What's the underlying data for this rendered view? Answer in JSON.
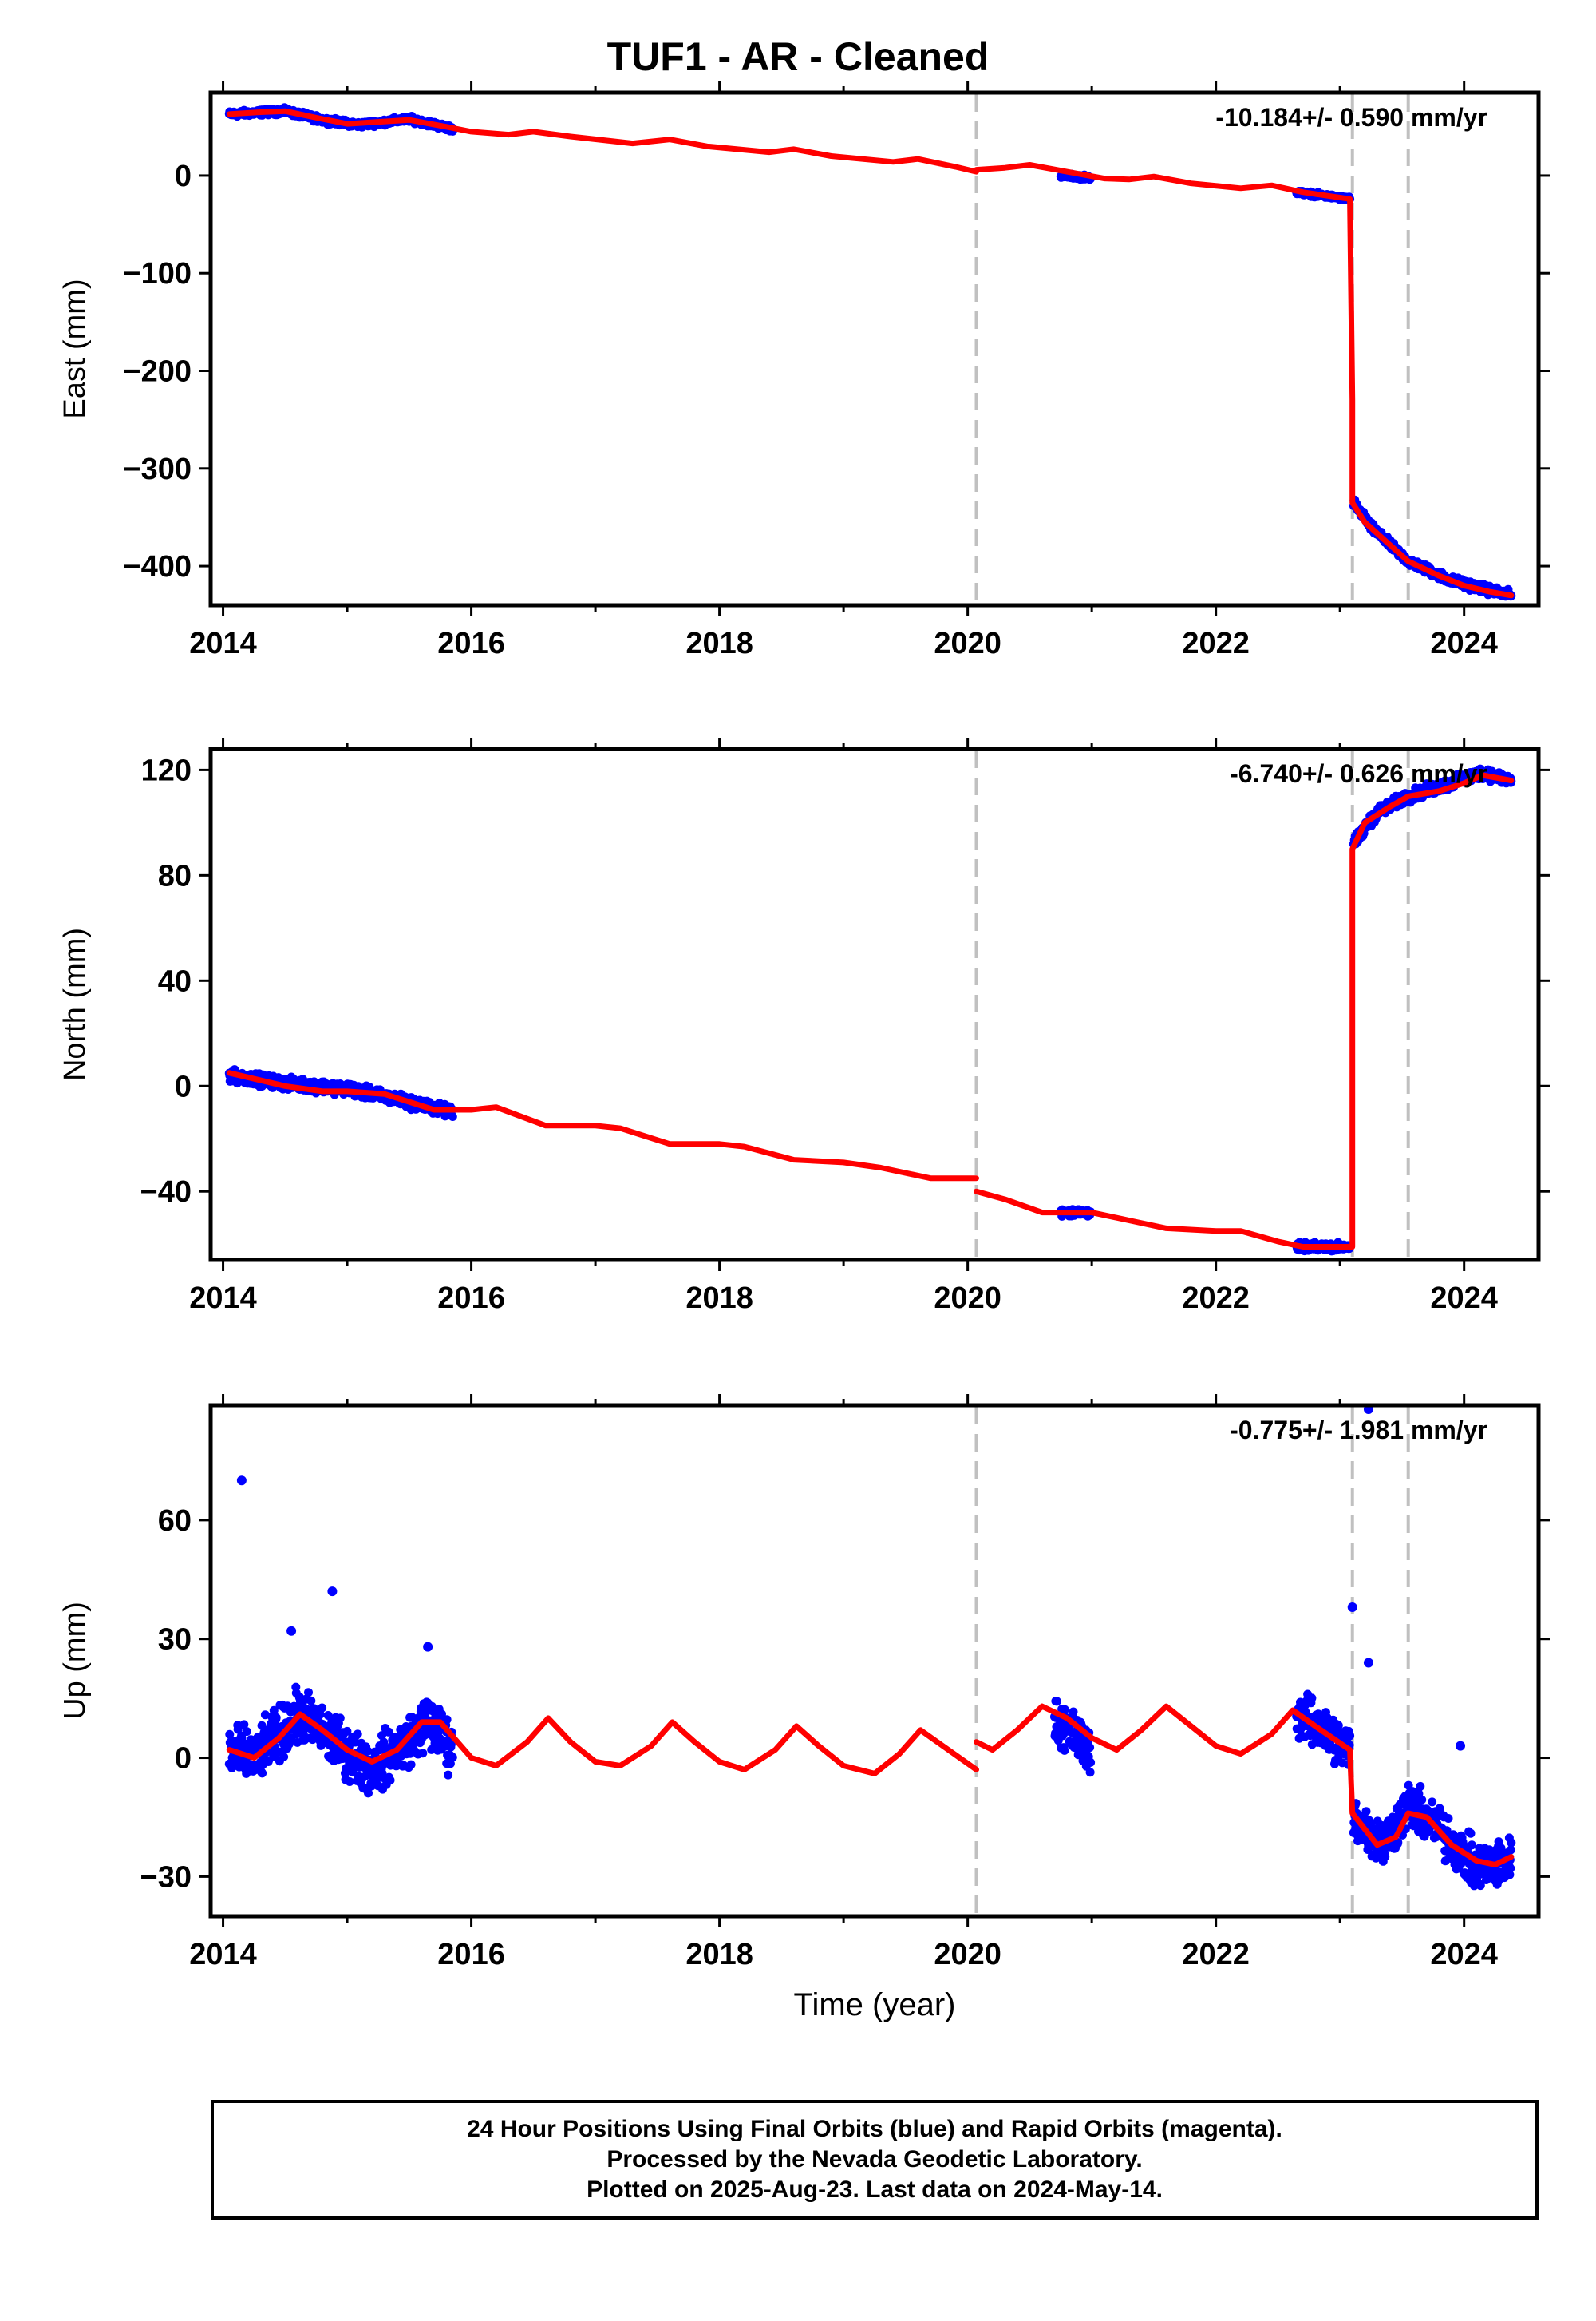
{
  "title": "TUF1  - AR - Cleaned",
  "footer": {
    "line1": "24 Hour Positions Using Final Orbits (blue) and Rapid Orbits (magenta).",
    "line2": "Processed by the Nevada Geodetic Laboratory.",
    "line3": "Plotted on 2025-Aug-23. Last data on 2024-May-14."
  },
  "colors": {
    "data": "#0000ff",
    "model": "#ff0000",
    "event_line": "#c0c0c0",
    "axis": "#000000"
  },
  "chart_data": [
    {
      "type": "scatter",
      "ylabel": "East (mm)",
      "xlabel": "",
      "rate_label": "-10.184+/- 0.590 mm/yr",
      "xlim": [
        2013.9,
        2024.6
      ],
      "ylim": [
        -440,
        85
      ],
      "xticks": [
        2014,
        2016,
        2018,
        2020,
        2022,
        2024
      ],
      "yticks": [
        0,
        -100,
        -200,
        -300,
        -400
      ],
      "event_lines": [
        2020.07,
        2023.1,
        2023.55
      ],
      "model_series": [
        [
          [
            2014.05,
            63
          ],
          [
            2014.3,
            65
          ],
          [
            2014.5,
            66
          ],
          [
            2014.8,
            58
          ],
          [
            2015.0,
            53
          ],
          [
            2015.5,
            57
          ],
          [
            2015.8,
            50
          ],
          [
            2016.0,
            45
          ],
          [
            2016.3,
            42
          ],
          [
            2016.5,
            45
          ],
          [
            2016.8,
            40
          ],
          [
            2017.3,
            33
          ],
          [
            2017.6,
            37
          ],
          [
            2017.9,
            30
          ],
          [
            2018.4,
            24
          ],
          [
            2018.6,
            27
          ],
          [
            2018.9,
            20
          ],
          [
            2019.4,
            14
          ],
          [
            2019.6,
            17
          ],
          [
            2019.9,
            9
          ],
          [
            2020.07,
            4
          ]
        ],
        [
          [
            2020.07,
            6
          ],
          [
            2020.3,
            8
          ],
          [
            2020.5,
            11
          ],
          [
            2020.8,
            4
          ],
          [
            2021.1,
            -3
          ],
          [
            2021.3,
            -4
          ],
          [
            2021.5,
            -1
          ],
          [
            2021.8,
            -8
          ],
          [
            2022.2,
            -13
          ],
          [
            2022.45,
            -10
          ],
          [
            2022.7,
            -17
          ],
          [
            2023.08,
            -24
          ],
          [
            2023.1,
            -230
          ],
          [
            2023.1,
            -335
          ],
          [
            2023.2,
            -355
          ],
          [
            2023.4,
            -378
          ],
          [
            2023.55,
            -395
          ],
          [
            2023.8,
            -410
          ],
          [
            2024.0,
            -420
          ],
          [
            2024.2,
            -426
          ],
          [
            2024.38,
            -430
          ]
        ]
      ],
      "data_segments": [
        {
          "x0": 2014.05,
          "x1": 2015.85,
          "points": [
            [
              2014.05,
              63
            ],
            [
              2014.5,
              66
            ],
            [
              2014.8,
              57
            ],
            [
              2015.1,
              52
            ],
            [
              2015.5,
              58
            ],
            [
              2015.85,
              48
            ]
          ],
          "spread": 4
        },
        {
          "x0": 2020.75,
          "x1": 2020.99,
          "points": [
            [
              2020.75,
              0
            ],
            [
              2020.99,
              -2
            ]
          ],
          "spread": 3
        },
        {
          "x0": 2022.65,
          "x1": 2023.08,
          "points": [
            [
              2022.65,
              -17
            ],
            [
              2023.08,
              -24
            ]
          ],
          "spread": 3
        },
        {
          "x0": 2023.11,
          "x1": 2024.38,
          "points": [
            [
              2023.11,
              -335
            ],
            [
              2023.25,
              -360
            ],
            [
              2023.55,
              -395
            ],
            [
              2023.9,
              -415
            ],
            [
              2024.38,
              -430
            ]
          ],
          "spread": 6
        }
      ],
      "outliers": []
    },
    {
      "type": "scatter",
      "ylabel": "North (mm)",
      "xlabel": "",
      "rate_label": "-6.740+/- 0.626 mm/yr",
      "xlim": [
        2013.9,
        2024.6
      ],
      "ylim": [
        -66,
        128
      ],
      "xticks": [
        2014,
        2016,
        2018,
        2020,
        2022,
        2024
      ],
      "yticks": [
        120,
        80,
        40,
        0,
        -40
      ],
      "event_lines": [
        2020.07,
        2023.1,
        2023.55
      ],
      "model_series": [
        [
          [
            2014.05,
            5
          ],
          [
            2014.5,
            0
          ],
          [
            2014.8,
            -2
          ],
          [
            2015.0,
            -2
          ],
          [
            2015.3,
            -3
          ],
          [
            2015.7,
            -9
          ],
          [
            2016.0,
            -9
          ],
          [
            2016.2,
            -8
          ],
          [
            2016.6,
            -15
          ],
          [
            2017.0,
            -15
          ],
          [
            2017.2,
            -16
          ],
          [
            2017.6,
            -22
          ],
          [
            2018.0,
            -22
          ],
          [
            2018.2,
            -23
          ],
          [
            2018.6,
            -28
          ],
          [
            2019.0,
            -29
          ],
          [
            2019.3,
            -31
          ],
          [
            2019.7,
            -35
          ],
          [
            2020.07,
            -35
          ]
        ],
        [
          [
            2020.07,
            -40
          ],
          [
            2020.3,
            -43
          ],
          [
            2020.6,
            -48
          ],
          [
            2021.0,
            -48
          ],
          [
            2021.3,
            -51
          ],
          [
            2021.6,
            -54
          ],
          [
            2022.0,
            -55
          ],
          [
            2022.2,
            -55
          ],
          [
            2022.5,
            -59
          ],
          [
            2022.7,
            -61
          ],
          [
            2023.1,
            -61
          ],
          [
            2023.1,
            90
          ],
          [
            2023.2,
            100
          ],
          [
            2023.4,
            106
          ],
          [
            2023.55,
            110
          ],
          [
            2023.8,
            112
          ],
          [
            2024.0,
            115
          ],
          [
            2024.15,
            118
          ],
          [
            2024.38,
            116
          ]
        ]
      ],
      "data_segments": [
        {
          "x0": 2014.05,
          "x1": 2015.85,
          "points": [
            [
              2014.05,
              4
            ],
            [
              2014.5,
              1
            ],
            [
              2015.0,
              -1
            ],
            [
              2015.4,
              -5
            ],
            [
              2015.85,
              -10
            ]
          ],
          "spread": 3
        },
        {
          "x0": 2020.75,
          "x1": 2020.99,
          "points": [
            [
              2020.75,
              -48
            ],
            [
              2020.99,
              -48
            ]
          ],
          "spread": 2
        },
        {
          "x0": 2022.65,
          "x1": 2023.08,
          "points": [
            [
              2022.65,
              -61
            ],
            [
              2023.08,
              -61
            ]
          ],
          "spread": 2
        },
        {
          "x0": 2023.11,
          "x1": 2024.38,
          "points": [
            [
              2023.11,
              92
            ],
            [
              2023.3,
              104
            ],
            [
              2023.55,
              110
            ],
            [
              2023.9,
              115
            ],
            [
              2024.15,
              119
            ],
            [
              2024.38,
              116
            ]
          ],
          "spread": 3
        }
      ],
      "outliers": []
    },
    {
      "type": "scatter",
      "ylabel": "Up (mm)",
      "xlabel": "Time (year)",
      "rate_label": "-0.775+/- 1.981 mm/yr",
      "xlim": [
        2013.9,
        2024.6
      ],
      "ylim": [
        -40,
        89
      ],
      "xticks": [
        2014,
        2016,
        2018,
        2020,
        2022,
        2024
      ],
      "yticks": [
        60,
        30,
        0,
        -30
      ],
      "event_lines": [
        2020.07,
        2023.1,
        2023.55
      ],
      "model_series": [
        [
          [
            2014.05,
            2
          ],
          [
            2014.25,
            0
          ],
          [
            2014.45,
            5
          ],
          [
            2014.62,
            11
          ],
          [
            2014.8,
            7
          ],
          [
            2015.0,
            2
          ],
          [
            2015.2,
            -1
          ],
          [
            2015.4,
            2
          ],
          [
            2015.6,
            9
          ],
          [
            2015.75,
            9
          ],
          [
            2016.0,
            0
          ],
          [
            2016.2,
            -2
          ],
          [
            2016.45,
            4
          ],
          [
            2016.62,
            10
          ],
          [
            2016.8,
            4
          ],
          [
            2017.0,
            -1
          ],
          [
            2017.2,
            -2
          ],
          [
            2017.45,
            3
          ],
          [
            2017.62,
            9
          ],
          [
            2017.8,
            4
          ],
          [
            2018.0,
            -1
          ],
          [
            2018.2,
            -3
          ],
          [
            2018.45,
            2
          ],
          [
            2018.62,
            8
          ],
          [
            2018.8,
            3
          ],
          [
            2019.0,
            -2
          ],
          [
            2019.25,
            -4
          ],
          [
            2019.45,
            1
          ],
          [
            2019.62,
            7
          ],
          [
            2019.8,
            3
          ],
          [
            2020.07,
            -3
          ]
        ],
        [
          [
            2020.07,
            4
          ],
          [
            2020.2,
            2
          ],
          [
            2020.4,
            7
          ],
          [
            2020.6,
            13
          ],
          [
            2020.8,
            10
          ],
          [
            2021.0,
            5
          ],
          [
            2021.2,
            2
          ],
          [
            2021.4,
            7
          ],
          [
            2021.6,
            13
          ],
          [
            2021.8,
            8
          ],
          [
            2022.0,
            3
          ],
          [
            2022.2,
            1
          ],
          [
            2022.45,
            6
          ],
          [
            2022.62,
            12
          ],
          [
            2022.8,
            8
          ],
          [
            2023.08,
            2
          ],
          [
            2023.1,
            -14
          ],
          [
            2023.3,
            -22
          ],
          [
            2023.45,
            -20
          ],
          [
            2023.55,
            -14
          ],
          [
            2023.7,
            -15
          ],
          [
            2023.9,
            -22
          ],
          [
            2024.1,
            -26
          ],
          [
            2024.25,
            -27
          ],
          [
            2024.38,
            -25
          ]
        ]
      ],
      "data_segments": [
        {
          "x0": 2014.05,
          "x1": 2015.85,
          "points": [
            [
              2014.05,
              2
            ],
            [
              2014.25,
              0
            ],
            [
              2014.62,
              11
            ],
            [
              2014.9,
              4
            ],
            [
              2015.2,
              -3
            ],
            [
              2015.4,
              2
            ],
            [
              2015.65,
              9
            ],
            [
              2015.85,
              2
            ]
          ],
          "spread": 9
        },
        {
          "x0": 2020.7,
          "x1": 2020.99,
          "points": [
            [
              2020.7,
              10
            ],
            [
              2020.99,
              2
            ]
          ],
          "spread": 8
        },
        {
          "x0": 2022.65,
          "x1": 2023.08,
          "points": [
            [
              2022.65,
              11
            ],
            [
              2022.85,
              7
            ],
            [
              2023.08,
              2
            ]
          ],
          "spread": 8
        },
        {
          "x0": 2023.11,
          "x1": 2024.38,
          "points": [
            [
              2023.11,
              -15
            ],
            [
              2023.35,
              -22
            ],
            [
              2023.55,
              -12
            ],
            [
              2023.8,
              -18
            ],
            [
              2024.1,
              -28
            ],
            [
              2024.38,
              -26
            ]
          ],
          "spread": 8
        }
      ],
      "outliers": [
        [
          2014.15,
          70
        ],
        [
          2014.88,
          42
        ],
        [
          2014.55,
          32
        ],
        [
          2015.65,
          28
        ],
        [
          2023.1,
          38
        ],
        [
          2023.23,
          24
        ],
        [
          2023.23,
          88
        ],
        [
          2023.97,
          3
        ]
      ]
    }
  ]
}
